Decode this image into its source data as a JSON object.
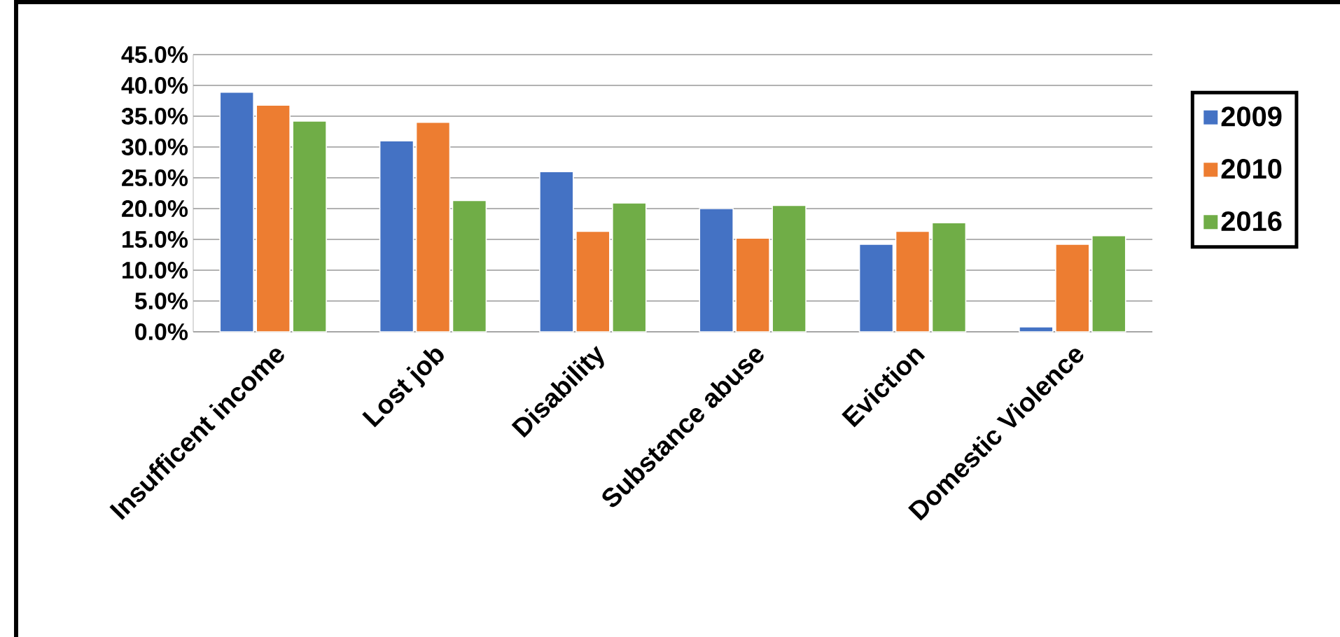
{
  "chart_data": {
    "type": "bar",
    "categories": [
      "Insufficent income",
      "Lost job",
      "Disability",
      "Substance abuse",
      "Eviction",
      "Domestic Violence"
    ],
    "series": [
      {
        "name": "2009",
        "color": "#4472c4",
        "values": [
          38.9,
          31.0,
          26.0,
          20.0,
          14.2,
          0.8
        ]
      },
      {
        "name": "2010",
        "color": "#ed7d31",
        "values": [
          36.8,
          34.0,
          16.3,
          15.2,
          16.3,
          14.2
        ]
      },
      {
        "name": "2016",
        "color": "#70ad47",
        "values": [
          34.2,
          21.3,
          20.9,
          20.5,
          17.7,
          15.6
        ]
      }
    ],
    "ylim": [
      0,
      45
    ],
    "yticks": [
      {
        "value": 0,
        "label": "0.0%"
      },
      {
        "value": 5,
        "label": "5.0%"
      },
      {
        "value": 10,
        "label": "10.0%"
      },
      {
        "value": 15,
        "label": "15.0%"
      },
      {
        "value": 20,
        "label": "20.0%"
      },
      {
        "value": 25,
        "label": "25.0%"
      },
      {
        "value": 30,
        "label": "30.0%"
      },
      {
        "value": 35,
        "label": "35.0%"
      },
      {
        "value": 40,
        "label": "40.0%"
      },
      {
        "value": 45,
        "label": "45.0%"
      }
    ],
    "grid": "y",
    "legend": "right"
  }
}
